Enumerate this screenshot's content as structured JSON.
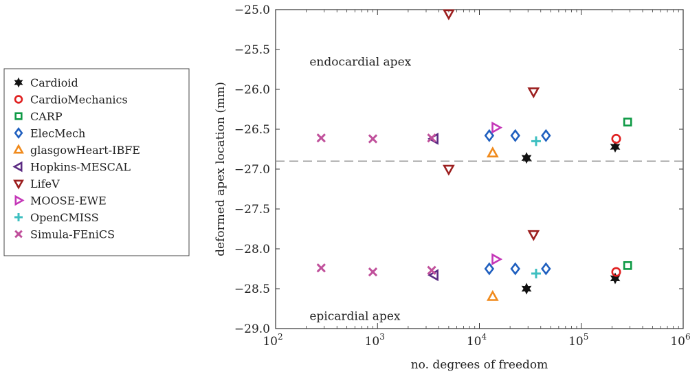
{
  "chart_data": {
    "type": "scatter",
    "xlabel": "no. degrees of freedom",
    "ylabel": "deformed apex location (mm)",
    "x_scale": "log",
    "xlim": [
      100,
      1000000
    ],
    "ylim": [
      -29.0,
      -25.0
    ],
    "x_ticks": [
      100,
      1000,
      10000,
      100000,
      1000000
    ],
    "x_tick_labels": [
      {
        "base": "10",
        "exp": "2"
      },
      {
        "base": "10",
        "exp": "3"
      },
      {
        "base": "10",
        "exp": "4"
      },
      {
        "base": "10",
        "exp": "5"
      },
      {
        "base": "10",
        "exp": "6"
      }
    ],
    "y_ticks": [
      -25.0,
      -25.5,
      -26.0,
      -26.5,
      -27.0,
      -27.5,
      -28.0,
      -28.5,
      -29.0
    ],
    "y_tick_labels": [
      "−25.0",
      "−25.5",
      "−26.0",
      "−26.5",
      "−27.0",
      "−27.5",
      "−28.0",
      "−28.5",
      "−29.0"
    ],
    "reference_line": {
      "y": -26.9,
      "style": "dashed",
      "color": "#8c8c8c"
    },
    "annotations": [
      {
        "text": "endocardial apex",
        "x": 1500,
        "y": -25.65
      },
      {
        "text": "epicardial apex",
        "x": 1500,
        "y": -28.84
      }
    ],
    "legend_position": "left",
    "series": [
      {
        "name": "Cardioid",
        "marker": "hexagram",
        "color": "#111111",
        "points": [
          [
            29000,
            -26.86
          ],
          [
            215000,
            -26.72
          ],
          [
            29000,
            -28.5
          ],
          [
            215000,
            -28.37
          ]
        ]
      },
      {
        "name": "CardioMechanics",
        "marker": "circle",
        "color": "#e02020",
        "points": [
          [
            220000,
            -26.62
          ],
          [
            220000,
            -28.29
          ]
        ]
      },
      {
        "name": "CARP",
        "marker": "square",
        "color": "#0e9a45",
        "points": [
          [
            285000,
            -26.41
          ],
          [
            285000,
            -28.21
          ]
        ]
      },
      {
        "name": "ElecMech",
        "marker": "diamond",
        "color": "#1f5fbf",
        "points": [
          [
            12500,
            -26.58
          ],
          [
            22500,
            -26.58
          ],
          [
            45000,
            -26.58
          ],
          [
            12500,
            -28.25
          ],
          [
            22500,
            -28.25
          ],
          [
            45000,
            -28.25
          ]
        ]
      },
      {
        "name": "glasgowHeart-IBFE",
        "marker": "triangle-up",
        "color": "#f08a1c",
        "points": [
          [
            13500,
            -26.8
          ],
          [
            13500,
            -28.6
          ]
        ]
      },
      {
        "name": "Hopkins-MESCAL",
        "marker": "triangle-left",
        "color": "#5a2a82",
        "points": [
          [
            3600,
            -26.62
          ],
          [
            3600,
            -28.33
          ]
        ]
      },
      {
        "name": "LifeV",
        "marker": "triangle-down",
        "color": "#9c1f1f",
        "points": [
          [
            5000,
            -25.05
          ],
          [
            5000,
            -27.0
          ],
          [
            34000,
            -26.03
          ],
          [
            34000,
            -27.82
          ]
        ]
      },
      {
        "name": "MOOSE-EWE",
        "marker": "triangle-right",
        "color": "#c437b8",
        "points": [
          [
            14500,
            -26.48
          ],
          [
            14500,
            -28.13
          ]
        ]
      },
      {
        "name": "OpenCMISS",
        "marker": "plus",
        "color": "#3dbfc0",
        "points": [
          [
            36000,
            -26.65
          ],
          [
            36000,
            -28.31
          ]
        ]
      },
      {
        "name": "Simula-FEniCS",
        "marker": "x",
        "color": "#c0509b",
        "points": [
          [
            280,
            -26.61
          ],
          [
            900,
            -26.62
          ],
          [
            3400,
            -26.61
          ],
          [
            280,
            -28.24
          ],
          [
            900,
            -28.29
          ],
          [
            3400,
            -28.27
          ]
        ]
      }
    ]
  }
}
